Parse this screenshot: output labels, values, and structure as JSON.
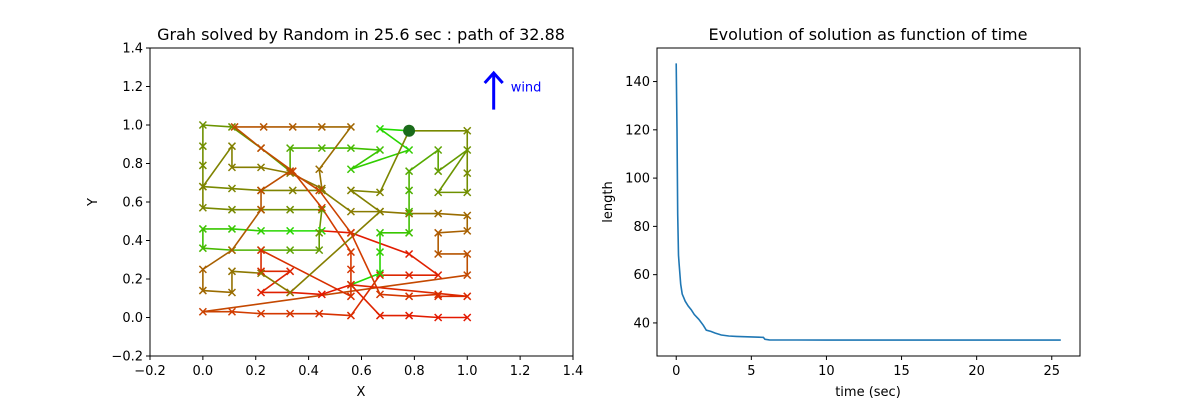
{
  "chart_data": [
    {
      "type": "line",
      "title": "Grah solved by Random in 25.6 sec : path of 32.88",
      "xlabel": "X",
      "ylabel": "Y",
      "xlim": [
        -0.2,
        1.4
      ],
      "ylim": [
        -0.2,
        1.4
      ],
      "xticks": [
        "−0.2",
        "0.0",
        "0.2",
        "0.4",
        "0.6",
        "0.8",
        "1.0",
        "1.2",
        "1.4"
      ],
      "yticks": [
        "−0.2",
        "0.0",
        "0.2",
        "0.4",
        "0.6",
        "0.8",
        "1.0",
        "1.2",
        "1.4"
      ],
      "grid": false,
      "annotation": {
        "text": "wind",
        "color": "#0000ff",
        "arrow_from": [
          1.1,
          1.08
        ],
        "arrow_to": [
          1.1,
          1.27
        ]
      },
      "start_marker": {
        "x": 0.78,
        "y": 0.97,
        "color": "#1a6b1a"
      },
      "path": [
        [
          0.78,
          0.97
        ],
        [
          0.67,
          0.98
        ],
        [
          0.78,
          0.87
        ],
        [
          0.56,
          0.77
        ],
        [
          0.67,
          0.87
        ],
        [
          0.56,
          0.88
        ],
        [
          0.45,
          0.88
        ],
        [
          0.33,
          0.88
        ],
        [
          0.33,
          0.76
        ],
        [
          0.22,
          0.88
        ],
        [
          0.11,
          0.99
        ],
        [
          0.0,
          1.0
        ],
        [
          0.0,
          0.89
        ],
        [
          0.0,
          0.79
        ],
        [
          0.0,
          0.68
        ],
        [
          0.11,
          0.67
        ],
        [
          0.22,
          0.66
        ],
        [
          0.34,
          0.66
        ],
        [
          0.45,
          0.66
        ],
        [
          0.56,
          0.55
        ],
        [
          0.67,
          0.55
        ],
        [
          0.78,
          0.54
        ],
        [
          0.89,
          0.54
        ],
        [
          1.0,
          0.53
        ],
        [
          1.0,
          0.45
        ],
        [
          0.89,
          0.44
        ],
        [
          0.89,
          0.33
        ],
        [
          1.0,
          0.33
        ],
        [
          1.0,
          0.22
        ],
        [
          0.0,
          0.03
        ],
        [
          0.11,
          0.03
        ],
        [
          0.22,
          0.02
        ],
        [
          0.33,
          0.02
        ],
        [
          0.44,
          0.02
        ],
        [
          0.56,
          0.01
        ],
        [
          0.67,
          0.22
        ],
        [
          0.78,
          0.22
        ],
        [
          0.89,
          0.22
        ],
        [
          0.78,
          0.33
        ],
        [
          0.56,
          0.44
        ],
        [
          0.45,
          0.45
        ],
        [
          0.33,
          0.45
        ],
        [
          0.22,
          0.45
        ],
        [
          0.11,
          0.46
        ],
        [
          0.0,
          0.46
        ],
        [
          0.0,
          0.36
        ],
        [
          0.11,
          0.35
        ],
        [
          0.22,
          0.35
        ],
        [
          0.33,
          0.35
        ],
        [
          0.44,
          0.35
        ],
        [
          0.44,
          0.44
        ],
        [
          0.45,
          0.56
        ],
        [
          0.33,
          0.56
        ],
        [
          0.22,
          0.56
        ],
        [
          0.11,
          0.56
        ],
        [
          0.0,
          0.57
        ],
        [
          0.0,
          0.68
        ],
        [
          0.11,
          0.89
        ],
        [
          0.11,
          0.78
        ],
        [
          0.22,
          0.78
        ],
        [
          0.33,
          0.75
        ],
        [
          0.45,
          0.67
        ],
        [
          0.44,
          0.77
        ],
        [
          0.56,
          0.99
        ],
        [
          0.45,
          0.99
        ],
        [
          0.34,
          0.99
        ],
        [
          0.23,
          0.99
        ],
        [
          0.12,
          0.99
        ],
        [
          0.22,
          0.88
        ],
        [
          0.34,
          0.76
        ],
        [
          0.45,
          0.57
        ],
        [
          0.56,
          0.34
        ],
        [
          0.56,
          0.25
        ],
        [
          0.56,
          0.11
        ],
        [
          0.22,
          0.35
        ],
        [
          0.22,
          0.24
        ],
        [
          0.33,
          0.24
        ],
        [
          0.22,
          0.13
        ],
        [
          0.33,
          0.13
        ],
        [
          0.45,
          0.12
        ],
        [
          0.56,
          0.17
        ],
        [
          0.67,
          0.23
        ],
        [
          0.67,
          0.34
        ],
        [
          0.67,
          0.44
        ],
        [
          0.78,
          0.44
        ],
        [
          0.78,
          0.55
        ],
        [
          0.78,
          0.66
        ],
        [
          0.78,
          0.76
        ],
        [
          0.89,
          0.87
        ],
        [
          0.89,
          0.76
        ],
        [
          1.0,
          0.87
        ],
        [
          0.89,
          0.65
        ],
        [
          1.0,
          0.65
        ],
        [
          1.0,
          0.75
        ],
        [
          1.0,
          0.97
        ],
        [
          0.78,
          0.97
        ],
        [
          0.67,
          0.65
        ],
        [
          0.56,
          0.66
        ],
        [
          0.67,
          0.55
        ],
        [
          0.33,
          0.13
        ],
        [
          0.22,
          0.23
        ],
        [
          0.11,
          0.24
        ],
        [
          0.11,
          0.13
        ],
        [
          0.0,
          0.14
        ],
        [
          0.0,
          0.25
        ],
        [
          0.11,
          0.35
        ],
        [
          0.22,
          0.56
        ],
        [
          0.22,
          0.66
        ],
        [
          0.33,
          0.76
        ],
        [
          0.44,
          0.66
        ],
        [
          0.56,
          0.44
        ],
        [
          0.67,
          0.12
        ],
        [
          0.78,
          0.11
        ],
        [
          0.89,
          0.12
        ],
        [
          0.89,
          0.11
        ],
        [
          1.0,
          0.11
        ],
        [
          0.56,
          0.17
        ],
        [
          0.67,
          0.01
        ],
        [
          0.78,
          0.01
        ],
        [
          0.89,
          0.0
        ],
        [
          1.0,
          0.0
        ]
      ]
    },
    {
      "type": "line",
      "title": "Evolution of solution as function of time",
      "xlabel": "time (sec)",
      "ylabel": "length",
      "xlim": [
        -1.28,
        26.88
      ],
      "ylim": [
        26.3,
        153.9
      ],
      "xticks": [
        0,
        5,
        10,
        15,
        20,
        25
      ],
      "yticks": [
        40,
        60,
        80,
        100,
        120,
        140
      ],
      "grid": false,
      "series": [
        {
          "color": "#1f77b4",
          "x": [
            0.0,
            0.05,
            0.1,
            0.15,
            0.2,
            0.3,
            0.4,
            0.5,
            0.6,
            0.8,
            1.0,
            1.2,
            1.5,
            1.8,
            2.0,
            2.3,
            2.6,
            3.0,
            3.5,
            4.0,
            4.5,
            5.0,
            5.5,
            5.8,
            5.9,
            6.2,
            8.0,
            10.0,
            15.0,
            20.0,
            25.6
          ],
          "values": [
            147.5,
            120.0,
            85.0,
            68.0,
            64.0,
            56.0,
            52.0,
            50.5,
            49.0,
            47.0,
            45.5,
            43.5,
            41.5,
            39.0,
            37.0,
            36.5,
            35.8,
            35.0,
            34.6,
            34.4,
            34.3,
            34.2,
            34.1,
            34.0,
            33.2,
            32.95,
            32.92,
            32.9,
            32.9,
            32.88,
            32.88
          ]
        }
      ]
    }
  ]
}
